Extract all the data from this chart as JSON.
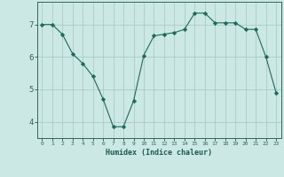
{
  "xlabel": "Humidex (Indice chaleur)",
  "ylabel": "",
  "x": [
    0,
    1,
    2,
    3,
    4,
    5,
    6,
    7,
    8,
    9,
    10,
    11,
    12,
    13,
    14,
    15,
    16,
    17,
    18,
    19,
    20,
    21,
    22,
    23
  ],
  "y": [
    7.0,
    7.0,
    6.7,
    6.1,
    5.8,
    5.4,
    4.7,
    3.85,
    3.85,
    4.65,
    6.05,
    6.65,
    6.7,
    6.75,
    6.85,
    7.35,
    7.35,
    7.05,
    7.05,
    7.05,
    6.85,
    6.85,
    6.0,
    4.9
  ],
  "line_color": "#1a6b5a",
  "marker": "D",
  "marker_size": 2.2,
  "bg_color": "#cce8e4",
  "grid_color": "#aaccc8",
  "axis_color": "#336655",
  "text_color": "#1a5a50",
  "ylim": [
    3.5,
    7.7
  ],
  "yticks": [
    4,
    5,
    6,
    7
  ],
  "xlim": [
    -0.5,
    23.5
  ],
  "xticks": [
    0,
    1,
    2,
    3,
    4,
    5,
    6,
    7,
    8,
    9,
    10,
    11,
    12,
    13,
    14,
    15,
    16,
    17,
    18,
    19,
    20,
    21,
    22,
    23
  ]
}
